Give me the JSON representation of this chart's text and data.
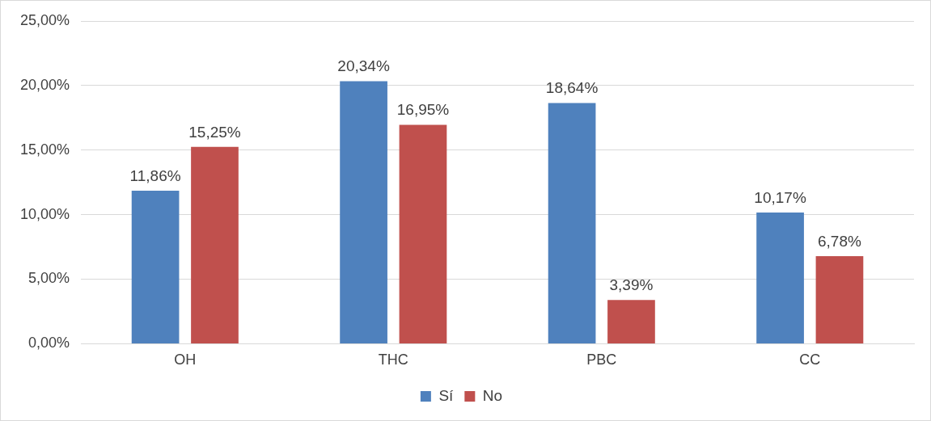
{
  "chart_data": {
    "type": "bar",
    "categories": [
      "OH",
      "THC",
      "PBC",
      "CC"
    ],
    "series": [
      {
        "name": "Sí",
        "color": "#4f81bd",
        "values": [
          11.86,
          20.34,
          18.64,
          10.17
        ],
        "value_labels": [
          "11,86%",
          "20,34%",
          "18,64%",
          "10,17%"
        ]
      },
      {
        "name": "No",
        "color": "#c0504d",
        "values": [
          15.25,
          16.95,
          3.39,
          6.78
        ],
        "value_labels": [
          "15,25%",
          "16,95%",
          "3,39%",
          "6,78%"
        ]
      }
    ],
    "ylim": [
      0,
      25
    ],
    "yticks": [
      {
        "value": 0,
        "label": "0,00%"
      },
      {
        "value": 5,
        "label": "5,00%"
      },
      {
        "value": 10,
        "label": "10,00%"
      },
      {
        "value": 15,
        "label": "15,00%"
      },
      {
        "value": 20,
        "label": "20,00%"
      },
      {
        "value": 25,
        "label": "25,00%"
      }
    ],
    "grid": "y",
    "legend": "bottom"
  }
}
